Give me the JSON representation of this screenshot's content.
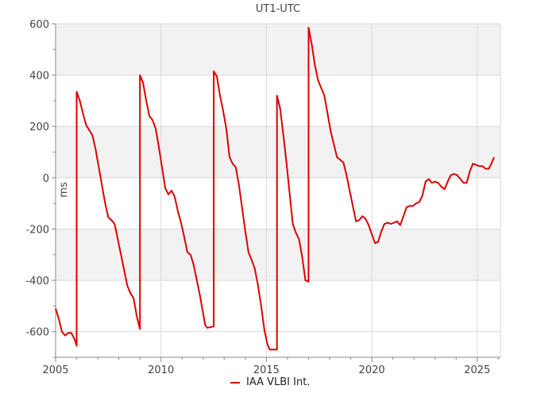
{
  "chart_data": {
    "type": "line",
    "title": "UT1-UTC",
    "ylabel": "ms",
    "xlabel": "",
    "xlim": [
      2005.0,
      2026.1
    ],
    "ylim": [
      -700,
      600
    ],
    "x_ticks": [
      2005,
      2010,
      2015,
      2020,
      2025
    ],
    "y_ticks": [
      -600,
      -400,
      -200,
      0,
      200,
      400,
      600
    ],
    "x_tick_labels": [
      "2005",
      "2010",
      "2015",
      "2020",
      "2025"
    ],
    "y_tick_labels": [
      "-600",
      "-400",
      "-200",
      "0",
      "200",
      "400",
      "600"
    ],
    "grid": true,
    "shaded_bands": [
      [
        400,
        600
      ],
      [
        0,
        200
      ],
      [
        -400,
        -200
      ]
    ],
    "band_color": "#f2f2f2",
    "grid_color": "#d9d9d9",
    "legend_position": "bottom",
    "series": [
      {
        "name": "IAA VLBI Int.",
        "color": "#dd0000",
        "points": [
          [
            2005.0,
            -510
          ],
          [
            2005.15,
            -550
          ],
          [
            2005.3,
            -600
          ],
          [
            2005.45,
            -615
          ],
          [
            2005.6,
            -605
          ],
          [
            2005.75,
            -605
          ],
          [
            2005.9,
            -630
          ],
          [
            2006.0,
            -655
          ],
          [
            2006.0,
            335
          ],
          [
            2006.15,
            300
          ],
          [
            2006.3,
            250
          ],
          [
            2006.45,
            205
          ],
          [
            2006.6,
            185
          ],
          [
            2006.75,
            165
          ],
          [
            2006.9,
            110
          ],
          [
            2007.05,
            40
          ],
          [
            2007.2,
            -30
          ],
          [
            2007.35,
            -100
          ],
          [
            2007.5,
            -155
          ],
          [
            2007.65,
            -165
          ],
          [
            2007.8,
            -180
          ],
          [
            2007.95,
            -240
          ],
          [
            2008.1,
            -300
          ],
          [
            2008.25,
            -360
          ],
          [
            2008.4,
            -420
          ],
          [
            2008.55,
            -450
          ],
          [
            2008.7,
            -470
          ],
          [
            2008.85,
            -540
          ],
          [
            2009.0,
            -590
          ],
          [
            2009.0,
            400
          ],
          [
            2009.15,
            370
          ],
          [
            2009.3,
            300
          ],
          [
            2009.45,
            240
          ],
          [
            2009.6,
            225
          ],
          [
            2009.75,
            190
          ],
          [
            2009.9,
            120
          ],
          [
            2010.05,
            40
          ],
          [
            2010.2,
            -40
          ],
          [
            2010.35,
            -65
          ],
          [
            2010.5,
            -50
          ],
          [
            2010.65,
            -75
          ],
          [
            2010.8,
            -130
          ],
          [
            2010.95,
            -175
          ],
          [
            2011.1,
            -230
          ],
          [
            2011.25,
            -290
          ],
          [
            2011.4,
            -300
          ],
          [
            2011.55,
            -340
          ],
          [
            2011.7,
            -400
          ],
          [
            2011.85,
            -460
          ],
          [
            2012.0,
            -530
          ],
          [
            2012.1,
            -575
          ],
          [
            2012.2,
            -585
          ],
          [
            2012.5,
            -580
          ],
          [
            2012.5,
            415
          ],
          [
            2012.65,
            395
          ],
          [
            2012.8,
            320
          ],
          [
            2012.95,
            260
          ],
          [
            2013.1,
            190
          ],
          [
            2013.25,
            80
          ],
          [
            2013.4,
            55
          ],
          [
            2013.55,
            40
          ],
          [
            2013.7,
            -30
          ],
          [
            2013.85,
            -120
          ],
          [
            2014.0,
            -210
          ],
          [
            2014.15,
            -290
          ],
          [
            2014.3,
            -320
          ],
          [
            2014.45,
            -355
          ],
          [
            2014.6,
            -420
          ],
          [
            2014.75,
            -500
          ],
          [
            2014.9,
            -590
          ],
          [
            2015.05,
            -650
          ],
          [
            2015.15,
            -670
          ],
          [
            2015.5,
            -670
          ],
          [
            2015.5,
            320
          ],
          [
            2015.65,
            270
          ],
          [
            2015.8,
            170
          ],
          [
            2015.95,
            60
          ],
          [
            2016.1,
            -60
          ],
          [
            2016.25,
            -180
          ],
          [
            2016.4,
            -215
          ],
          [
            2016.55,
            -240
          ],
          [
            2016.7,
            -310
          ],
          [
            2016.85,
            -400
          ],
          [
            2017.0,
            -405
          ],
          [
            2017.0,
            585
          ],
          [
            2017.15,
            520
          ],
          [
            2017.3,
            440
          ],
          [
            2017.45,
            380
          ],
          [
            2017.6,
            350
          ],
          [
            2017.75,
            320
          ],
          [
            2017.9,
            250
          ],
          [
            2018.05,
            180
          ],
          [
            2018.2,
            130
          ],
          [
            2018.35,
            80
          ],
          [
            2018.5,
            70
          ],
          [
            2018.65,
            60
          ],
          [
            2018.8,
            10
          ],
          [
            2018.95,
            -50
          ],
          [
            2019.1,
            -110
          ],
          [
            2019.25,
            -170
          ],
          [
            2019.4,
            -165
          ],
          [
            2019.55,
            -150
          ],
          [
            2019.7,
            -160
          ],
          [
            2019.85,
            -185
          ],
          [
            2020.0,
            -220
          ],
          [
            2020.15,
            -255
          ],
          [
            2020.3,
            -250
          ],
          [
            2020.45,
            -210
          ],
          [
            2020.6,
            -180
          ],
          [
            2020.75,
            -175
          ],
          [
            2020.9,
            -180
          ],
          [
            2021.05,
            -175
          ],
          [
            2021.2,
            -170
          ],
          [
            2021.35,
            -185
          ],
          [
            2021.5,
            -150
          ],
          [
            2021.65,
            -115
          ],
          [
            2021.8,
            -110
          ],
          [
            2021.95,
            -110
          ],
          [
            2022.1,
            -100
          ],
          [
            2022.25,
            -95
          ],
          [
            2022.4,
            -70
          ],
          [
            2022.55,
            -15
          ],
          [
            2022.7,
            -5
          ],
          [
            2022.85,
            -20
          ],
          [
            2023.0,
            -15
          ],
          [
            2023.15,
            -20
          ],
          [
            2023.3,
            -35
          ],
          [
            2023.45,
            -45
          ],
          [
            2023.6,
            -15
          ],
          [
            2023.75,
            10
          ],
          [
            2023.9,
            15
          ],
          [
            2024.05,
            10
          ],
          [
            2024.2,
            -5
          ],
          [
            2024.35,
            -20
          ],
          [
            2024.5,
            -20
          ],
          [
            2024.65,
            25
          ],
          [
            2024.8,
            55
          ],
          [
            2024.95,
            50
          ],
          [
            2025.1,
            45
          ],
          [
            2025.25,
            45
          ],
          [
            2025.4,
            35
          ],
          [
            2025.55,
            35
          ],
          [
            2025.7,
            60
          ],
          [
            2025.8,
            80
          ]
        ]
      }
    ]
  }
}
